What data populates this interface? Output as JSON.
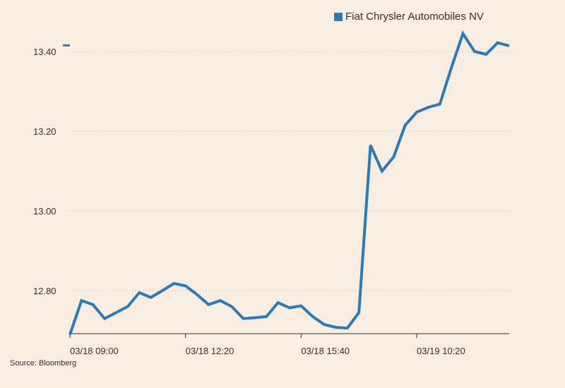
{
  "legend": {
    "label": "Fiat Chrysler Automobiles NV",
    "color": "#2b7bb9"
  },
  "source": "Source: Bloomberg",
  "chart_data": {
    "type": "line",
    "title": "",
    "xlabel": "",
    "ylabel": "",
    "ylim": [
      12.7,
      13.45
    ],
    "yticks": [
      "12.80",
      "13.00",
      "13.20",
      "13.40"
    ],
    "ytick_values": [
      12.8,
      13.0,
      13.2,
      13.4
    ],
    "xticks": [
      "03/18 09:00",
      "03/18 12:20",
      "03/18 15:40",
      "03/19 10:20"
    ],
    "xtick_indices": [
      0,
      10,
      20,
      30
    ],
    "grid": true,
    "legend_position": "top-right",
    "last_value_marker": 13.41,
    "series": [
      {
        "name": "Fiat Chrysler Automobiles NV",
        "color": "#2b7bb9",
        "values": [
          12.69,
          12.775,
          12.765,
          12.73,
          12.745,
          12.76,
          12.795,
          12.783,
          12.8,
          12.818,
          12.812,
          12.79,
          12.765,
          12.775,
          12.76,
          12.73,
          12.732,
          12.735,
          12.77,
          12.757,
          12.762,
          12.735,
          12.715,
          12.708,
          12.706,
          12.745,
          13.165,
          13.1,
          13.135,
          13.215,
          13.248,
          13.26,
          13.268,
          13.36,
          13.445,
          13.4,
          13.393,
          13.422,
          13.414
        ]
      }
    ]
  }
}
